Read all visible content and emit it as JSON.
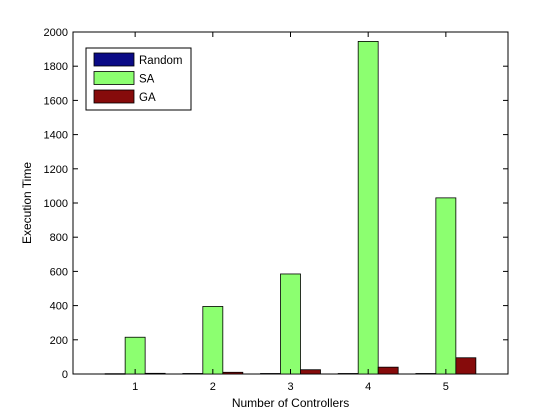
{
  "chart_data": {
    "type": "bar",
    "title": "",
    "xlabel": "Number of Controllers",
    "ylabel": "Execution Time",
    "categories": [
      "1",
      "2",
      "3",
      "4",
      "5"
    ],
    "ylim": [
      0,
      2000
    ],
    "yticks": [
      0,
      200,
      400,
      600,
      800,
      1000,
      1200,
      1400,
      1600,
      1800,
      2000
    ],
    "grid": false,
    "legend_position": "top-left",
    "series": [
      {
        "name": "Random",
        "color": "#0b0b86",
        "values": [
          2,
          3,
          3,
          3,
          3
        ]
      },
      {
        "name": "SA",
        "color": "#8cff70",
        "values": [
          215,
          395,
          585,
          1945,
          1030
        ]
      },
      {
        "name": "GA",
        "color": "#860b0b",
        "values": [
          4,
          10,
          25,
          40,
          95
        ]
      }
    ]
  }
}
